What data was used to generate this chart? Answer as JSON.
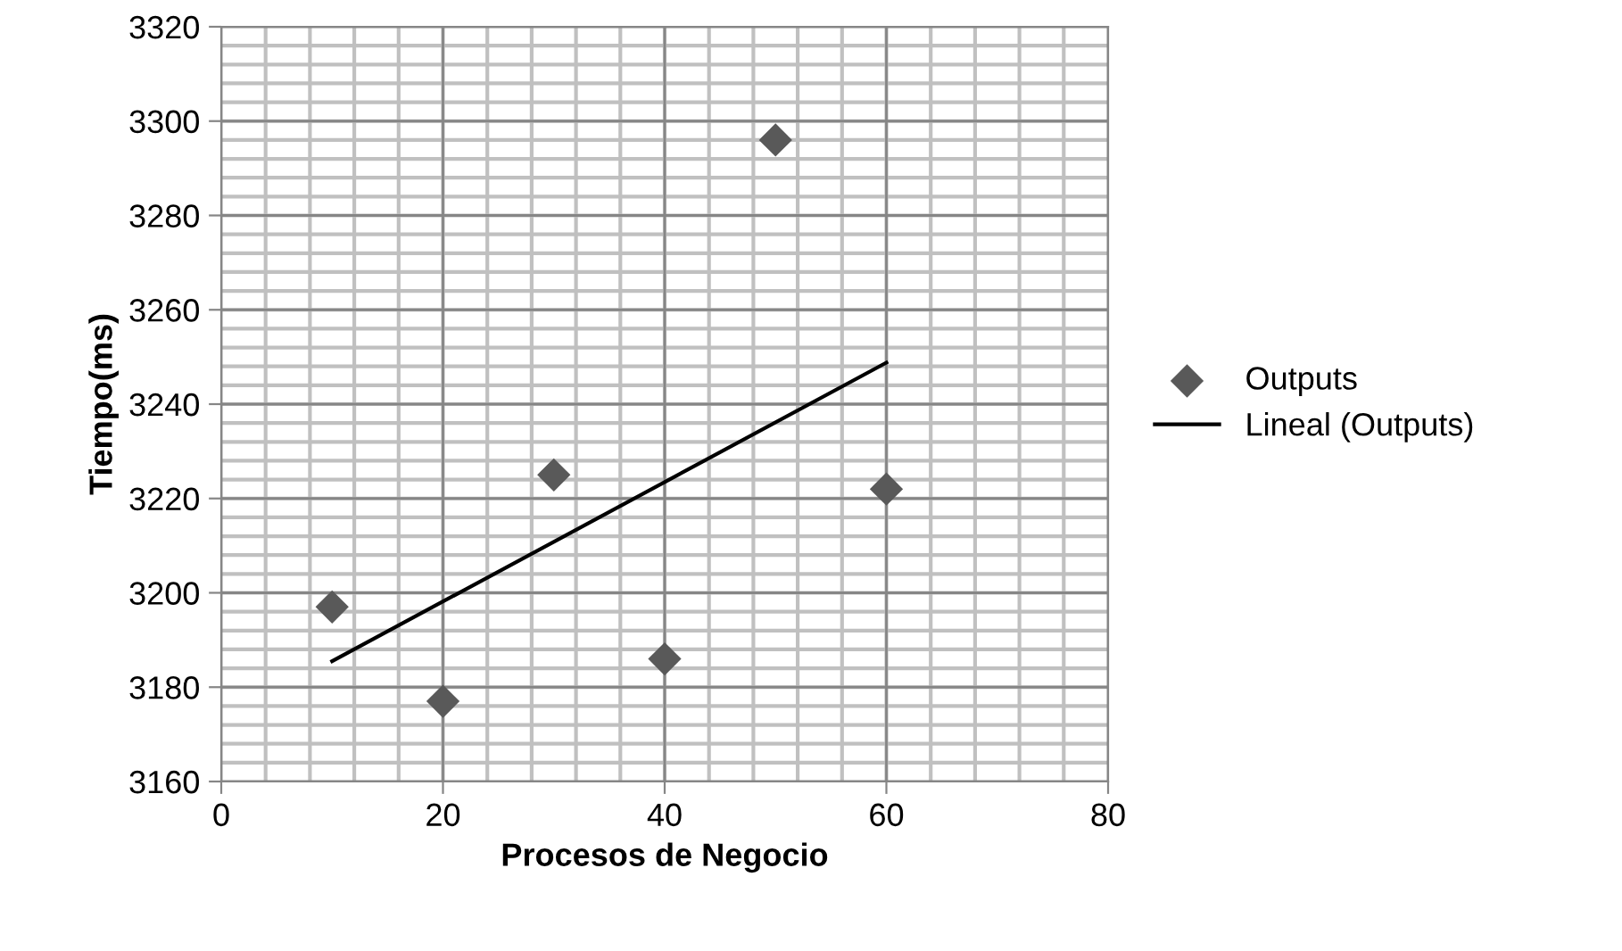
{
  "chart_data": {
    "type": "scatter",
    "xlabel": "Procesos de Negocio",
    "ylabel": "Tiempo(ms)",
    "x": [
      10,
      20,
      30,
      40,
      50,
      60
    ],
    "series": [
      {
        "name": "Outputs",
        "color": "#595959",
        "marker": "diamond",
        "values": [
          3197,
          3177,
          3225,
          3186,
          3296,
          3222
        ]
      },
      {
        "name": "Lineal (Outputs)",
        "type": "line",
        "color": "#000000",
        "line_style": "solid",
        "marker": "none",
        "x": [
          10,
          60
        ],
        "values": [
          3185.5,
          3248.8
        ]
      }
    ],
    "xlim": [
      0,
      80
    ],
    "xticks": [
      0,
      20,
      40,
      60,
      80
    ],
    "ylim": [
      3160,
      3320
    ],
    "yticks": [
      3160,
      3180,
      3200,
      3220,
      3240,
      3260,
      3280,
      3300,
      3320
    ],
    "grid": true,
    "legend": "right"
  }
}
